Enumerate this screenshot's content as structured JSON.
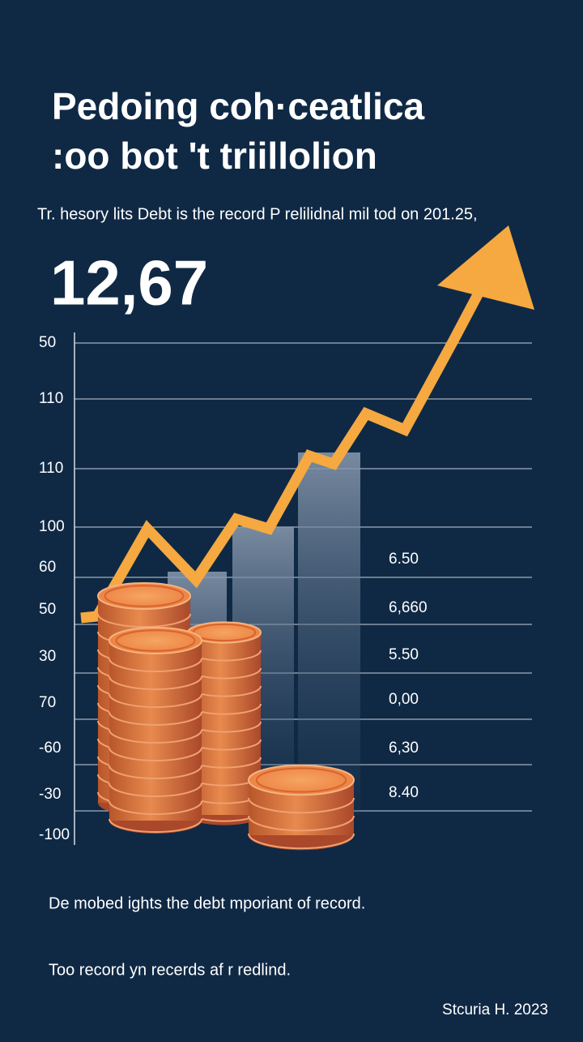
{
  "header": {
    "title_line1": "Pedoing coh·ceatlica",
    "title_line2": ":oo bot 't triillolion",
    "subtitle": "Tr. hesory lits Debt is the record P relilidnal mil tod on 201.25,"
  },
  "headline_value": "12,67",
  "left_labels": [
    "50",
    "110",
    "110",
    "100",
    "60",
    "50",
    "30",
    "70",
    "-60",
    "-30",
    "-100"
  ],
  "right_labels": [
    "6.50",
    "6,660",
    "5.50",
    "0,00",
    "6,30",
    "8.40"
  ],
  "footer": {
    "note1": "De mobed ights the debt mporiant of record.",
    "note2": "Too record yn recerds af r redlind.",
    "source": "Stcuria H. 2023"
  }
}
